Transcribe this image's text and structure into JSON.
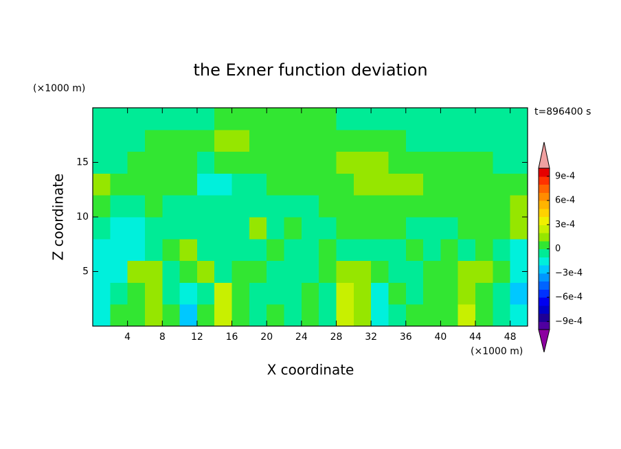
{
  "chart_data": {
    "type": "contour",
    "title": "the Exner function deviation",
    "x_label": "X coordinate",
    "y_label": "Z coordinate",
    "x_unit": "(×1000 m)",
    "y_unit": "(×1000 m)",
    "time_label": "t=896400 s",
    "xlim": [
      0,
      50
    ],
    "ylim": [
      0,
      20
    ],
    "xticks": [
      4,
      8,
      12,
      16,
      20,
      24,
      28,
      32,
      36,
      40,
      44,
      48
    ],
    "yticks": [
      5,
      10,
      15
    ],
    "x": [
      0,
      2,
      4,
      6,
      8,
      10,
      12,
      14,
      16,
      18,
      20,
      22,
      24,
      26,
      28,
      30,
      32,
      34,
      36,
      38,
      40,
      42,
      44,
      46,
      48,
      50
    ],
    "z": [
      0,
      2,
      4,
      6,
      8,
      10,
      12,
      14,
      16,
      18,
      20
    ],
    "values": [
      [
        -0.00015,
        5e-05,
        5e-05,
        0.00015,
        5e-05,
        -0.00025,
        5e-05,
        0.00025,
        5e-05,
        -5e-05,
        5e-05,
        -5e-05,
        5e-05,
        -5e-05,
        0.00025,
        0.00015,
        -0.00015,
        -5e-05,
        5e-05,
        5e-05,
        5e-05,
        0.00025,
        5e-05,
        -5e-05,
        -0.00015
      ],
      [
        -0.00015,
        -5e-05,
        5e-05,
        0.00015,
        -5e-05,
        -0.00015,
        -5e-05,
        0.00025,
        5e-05,
        -5e-05,
        -5e-05,
        -5e-05,
        5e-05,
        -5e-05,
        0.00025,
        0.00015,
        -0.00015,
        5e-05,
        -5e-05,
        5e-05,
        5e-05,
        0.00015,
        5e-05,
        -5e-05,
        -0.00025
      ],
      [
        -0.00015,
        -0.00015,
        0.00015,
        0.00015,
        -5e-05,
        5e-05,
        0.00015,
        -5e-05,
        5e-05,
        5e-05,
        -5e-05,
        -5e-05,
        -5e-05,
        5e-05,
        0.00015,
        0.00015,
        5e-05,
        -5e-05,
        -5e-05,
        5e-05,
        5e-05,
        0.00015,
        0.00015,
        5e-05,
        -0.00015
      ],
      [
        -0.00015,
        -0.00015,
        -0.00015,
        -5e-05,
        5e-05,
        0.00015,
        -5e-05,
        -5e-05,
        -5e-05,
        -5e-05,
        5e-05,
        -5e-05,
        -5e-05,
        5e-05,
        -5e-05,
        -5e-05,
        -5e-05,
        -5e-05,
        5e-05,
        -5e-05,
        5e-05,
        -5e-05,
        5e-05,
        -5e-05,
        -0.00015
      ],
      [
        -5e-05,
        -0.00015,
        -0.00015,
        -5e-05,
        -5e-05,
        -5e-05,
        -5e-05,
        -5e-05,
        -5e-05,
        0.00015,
        -5e-05,
        5e-05,
        -5e-05,
        -5e-05,
        5e-05,
        5e-05,
        5e-05,
        5e-05,
        -5e-05,
        -5e-05,
        -5e-05,
        5e-05,
        5e-05,
        5e-05,
        0.00015
      ],
      [
        5e-05,
        -5e-05,
        -5e-05,
        5e-05,
        -5e-05,
        -5e-05,
        -5e-05,
        -5e-05,
        -5e-05,
        -5e-05,
        -5e-05,
        -5e-05,
        -5e-05,
        5e-05,
        5e-05,
        5e-05,
        5e-05,
        5e-05,
        5e-05,
        5e-05,
        5e-05,
        5e-05,
        5e-05,
        5e-05,
        0.00015
      ],
      [
        0.00015,
        5e-05,
        5e-05,
        5e-05,
        5e-05,
        5e-05,
        -0.00015,
        -0.00015,
        -5e-05,
        -5e-05,
        5e-05,
        5e-05,
        5e-05,
        5e-05,
        5e-05,
        0.00015,
        0.00015,
        0.00015,
        0.00015,
        5e-05,
        5e-05,
        5e-05,
        5e-05,
        5e-05,
        5e-05
      ],
      [
        -5e-05,
        -5e-05,
        5e-05,
        5e-05,
        5e-05,
        5e-05,
        -5e-05,
        5e-05,
        5e-05,
        5e-05,
        5e-05,
        5e-05,
        5e-05,
        5e-05,
        0.00015,
        0.00015,
        0.00015,
        5e-05,
        5e-05,
        5e-05,
        5e-05,
        5e-05,
        5e-05,
        -5e-05,
        -5e-05
      ],
      [
        -5e-05,
        -5e-05,
        -5e-05,
        5e-05,
        5e-05,
        5e-05,
        5e-05,
        0.00015,
        0.00015,
        5e-05,
        5e-05,
        5e-05,
        5e-05,
        5e-05,
        5e-05,
        5e-05,
        5e-05,
        5e-05,
        -5e-05,
        -5e-05,
        -5e-05,
        -5e-05,
        -5e-05,
        -5e-05,
        -5e-05
      ],
      [
        -5e-05,
        -5e-05,
        -5e-05,
        -5e-05,
        -5e-05,
        -5e-05,
        -5e-05,
        5e-05,
        5e-05,
        5e-05,
        5e-05,
        5e-05,
        5e-05,
        5e-05,
        -5e-05,
        -5e-05,
        -5e-05,
        -5e-05,
        -5e-05,
        -5e-05,
        -5e-05,
        -5e-05,
        -5e-05,
        -5e-05,
        -5e-05
      ]
    ],
    "levels": [
      -0.001,
      -0.0009,
      -0.0008,
      -0.0007,
      -0.0006,
      -0.0005,
      -0.0004,
      -0.0003,
      -0.0002,
      -0.0001,
      0,
      0.0001,
      0.0002,
      0.0003,
      0.0004,
      0.0005,
      0.0006,
      0.0007,
      0.0008,
      0.0009,
      0.001
    ],
    "colors": [
      "#5000a0",
      "#1e0096",
      "#0000c8",
      "#0000f0",
      "#0032ff",
      "#0064ff",
      "#0096ff",
      "#00c8ff",
      "#00f0dc",
      "#00eb96",
      "#32e632",
      "#96e600",
      "#c8f000",
      "#f0f000",
      "#ffd200",
      "#ffb400",
      "#ff8c00",
      "#ff6400",
      "#ff3200",
      "#e60000"
    ],
    "under_color": "#8c00a0",
    "over_color": "#f0a0a0",
    "colorbar_ticks": [
      {
        "value": 0.0009,
        "label": "9e-4"
      },
      {
        "value": 0.0006,
        "label": "6e-4"
      },
      {
        "value": 0.0003,
        "label": "3e-4"
      },
      0,
      {
        "value": -0.0003,
        "label": "−3e-4"
      },
      {
        "value": -0.0006,
        "label": "−6e-4"
      },
      {
        "value": -0.0009,
        "label": "−9e-4"
      }
    ]
  }
}
